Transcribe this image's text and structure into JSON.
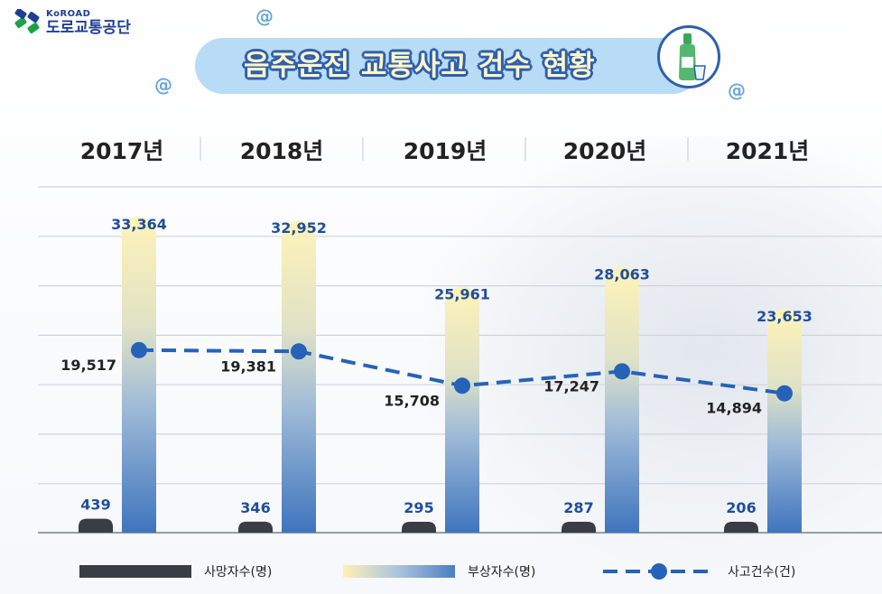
{
  "brand": {
    "name_en": "KoROAD",
    "name_ko": "도로교통공단"
  },
  "title": "음주운전 교통사고 건수 현황",
  "colors": {
    "deaths": "#3a3d44",
    "injuries_top": "#fff1b5",
    "injuries_bottom": "#4378c0",
    "accidents": "#2563b8",
    "value_text": "#1f4e9a",
    "accident_text": "#222222",
    "title_fill": "#fff6c8",
    "title_outline": "#2f5fae"
  },
  "legend": {
    "deaths": "사망자수(명)",
    "injuries": "부상자수(명)",
    "accidents": "사고건수(건)"
  },
  "chart_data": {
    "type": "bar",
    "title": "음주운전 교통사고 건수 현황",
    "categories": [
      "2017년",
      "2018년",
      "2019년",
      "2020년",
      "2021년"
    ],
    "series": [
      {
        "name": "사망자수(명)",
        "type": "bar",
        "values": [
          439,
          346,
          295,
          287,
          206
        ],
        "labels": [
          "439",
          "346",
          "295",
          "287",
          "206"
        ]
      },
      {
        "name": "부상자수(명)",
        "type": "bar",
        "values": [
          33364,
          32952,
          25961,
          28063,
          23653
        ],
        "labels": [
          "33,364",
          "32,952",
          "25,961",
          "28,063",
          "23,653"
        ]
      },
      {
        "name": "사고건수(건)",
        "type": "line",
        "style": "dashed",
        "values": [
          19517,
          19381,
          15708,
          17247,
          14894
        ],
        "labels": [
          "19,517",
          "19,381",
          "15,708",
          "17,247",
          "14,894"
        ]
      }
    ],
    "grid": true,
    "legend_position": "bottom"
  }
}
